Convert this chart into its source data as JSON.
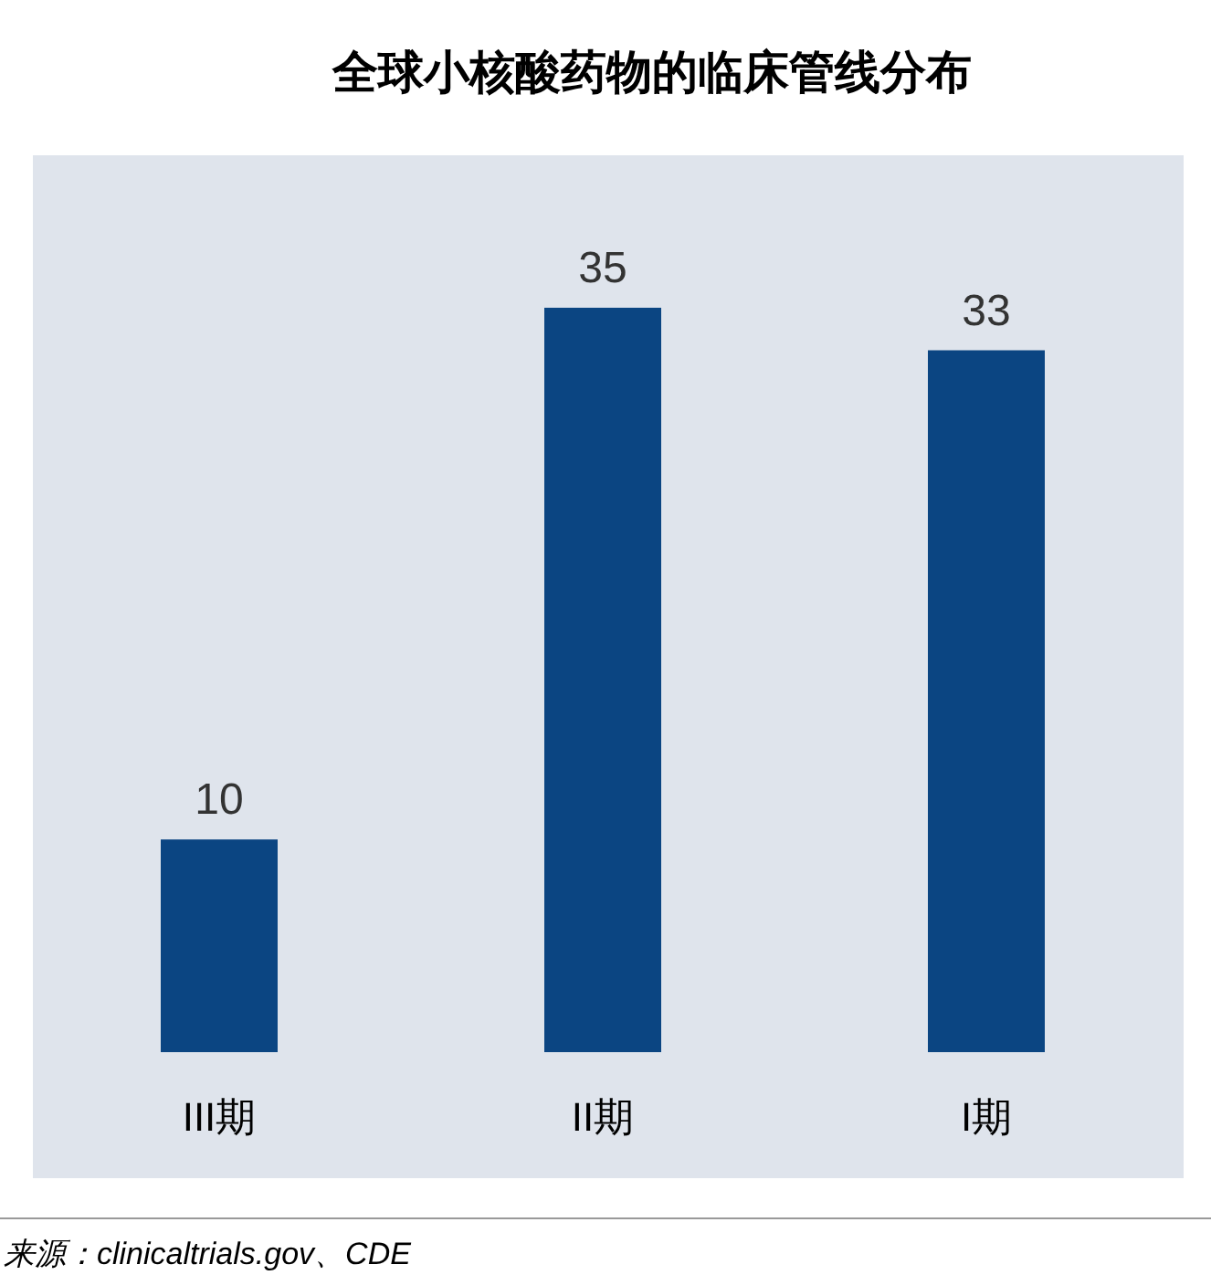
{
  "chart_data": {
    "type": "bar",
    "title": "全球小核酸药物的临床管线分布",
    "categories": [
      "III期",
      "II期",
      "I期"
    ],
    "values": [
      10,
      35,
      33
    ],
    "color": "#0b4582",
    "data_labels": true,
    "annotations": [
      "来源：clinicaltrials.gov、CDE"
    ]
  }
}
